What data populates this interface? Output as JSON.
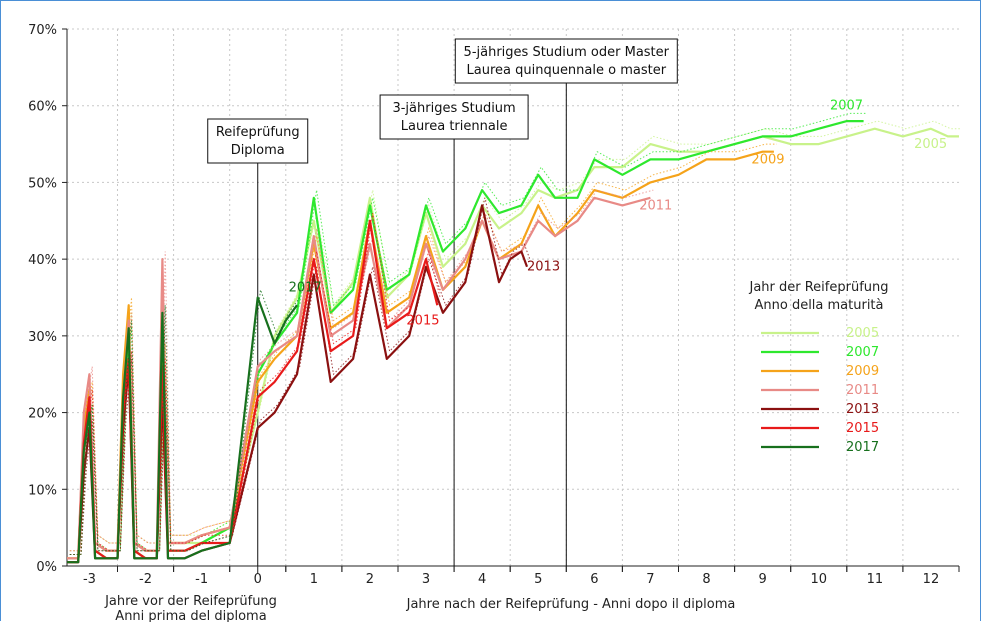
{
  "chart_data": {
    "type": "line",
    "y_tick_labels": [
      "0%",
      "10%",
      "20%",
      "30%",
      "40%",
      "50%",
      "60%",
      "70%"
    ],
    "x_tick_labels": [
      "-3",
      "-2",
      "-1",
      "0",
      "1",
      "2",
      "3",
      "4",
      "5",
      "6",
      "7",
      "8",
      "9",
      "10",
      "11",
      "12"
    ],
    "ylim": [
      0,
      70
    ],
    "xlim": [
      -3.4,
      12.5
    ],
    "grid": true,
    "xlabel_before": [
      "Jahre vor der Reifeprüfung",
      "Anni prima del diploma"
    ],
    "xlabel_after": "Jahre nach der Reifeprüfung - Anni dopo il diploma",
    "legend": {
      "title": [
        "Jahr der Reifeprüfung",
        "Anno della maturità"
      ],
      "placement": "right"
    },
    "annotations": [
      {
        "x": 0,
        "text": [
          "Reifeprüfung",
          "Diploma"
        ]
      },
      {
        "x": 3.5,
        "text": [
          "3-jähriges Studium",
          "Laurea triennale"
        ]
      },
      {
        "x": 5.5,
        "text": [
          "5-jähriges Studium oder Master",
          "Laurea quinquennale o master"
        ]
      }
    ],
    "series": [
      {
        "name": "2005",
        "color": "#c8f28a",
        "points": [
          [
            -3.4,
            1
          ],
          [
            -3.2,
            1
          ],
          [
            -3.1,
            18
          ],
          [
            -3.0,
            22
          ],
          [
            -2.9,
            3
          ],
          [
            -2.7,
            2
          ],
          [
            -2.5,
            2
          ],
          [
            -2.4,
            20
          ],
          [
            -2.3,
            32
          ],
          [
            -2.2,
            3
          ],
          [
            -2.0,
            2
          ],
          [
            -1.8,
            2
          ],
          [
            -1.7,
            28
          ],
          [
            -1.6,
            3
          ],
          [
            -1.3,
            3
          ],
          [
            -1.0,
            3
          ],
          [
            -0.5,
            5
          ],
          [
            0.0,
            20
          ],
          [
            0.3,
            30
          ],
          [
            0.7,
            35
          ],
          [
            1.0,
            45
          ],
          [
            1.3,
            33
          ],
          [
            1.7,
            37
          ],
          [
            2.0,
            48
          ],
          [
            2.3,
            35
          ],
          [
            2.7,
            38
          ],
          [
            3.0,
            46
          ],
          [
            3.3,
            39
          ],
          [
            3.7,
            42
          ],
          [
            4.0,
            47
          ],
          [
            4.3,
            44
          ],
          [
            4.7,
            46
          ],
          [
            5.0,
            49
          ],
          [
            5.3,
            48
          ],
          [
            5.7,
            49
          ],
          [
            6.0,
            52
          ],
          [
            6.5,
            52
          ],
          [
            7.0,
            55
          ],
          [
            7.5,
            54
          ],
          [
            8.0,
            54
          ],
          [
            8.5,
            55
          ],
          [
            9.0,
            56
          ],
          [
            9.5,
            55
          ],
          [
            10.0,
            55
          ],
          [
            10.5,
            56
          ],
          [
            11.0,
            57
          ],
          [
            11.5,
            56
          ],
          [
            12.0,
            57
          ],
          [
            12.3,
            56
          ],
          [
            12.5,
            56
          ]
        ],
        "label": {
          "text": "2005",
          "x": 11.7,
          "y": 54.5
        }
      },
      {
        "name": "2007",
        "color": "#2ee82e",
        "points": [
          [
            -3.4,
            0.5
          ],
          [
            -3.2,
            0.5
          ],
          [
            -3.1,
            15
          ],
          [
            -3.0,
            20
          ],
          [
            -2.9,
            2
          ],
          [
            -2.7,
            1
          ],
          [
            -2.5,
            1
          ],
          [
            -2.4,
            20
          ],
          [
            -2.3,
            30
          ],
          [
            -2.2,
            2
          ],
          [
            -2.0,
            1
          ],
          [
            -1.8,
            1
          ],
          [
            -1.7,
            25
          ],
          [
            -1.6,
            2
          ],
          [
            -1.3,
            2
          ],
          [
            -1.0,
            3
          ],
          [
            -0.5,
            5
          ],
          [
            0.0,
            25
          ],
          [
            0.3,
            29
          ],
          [
            0.7,
            33
          ],
          [
            1.0,
            48
          ],
          [
            1.3,
            33
          ],
          [
            1.7,
            36
          ],
          [
            2.0,
            47
          ],
          [
            2.3,
            36
          ],
          [
            2.7,
            38
          ],
          [
            3.0,
            47
          ],
          [
            3.3,
            41
          ],
          [
            3.7,
            44
          ],
          [
            4.0,
            49
          ],
          [
            4.3,
            46
          ],
          [
            4.7,
            47
          ],
          [
            5.0,
            51
          ],
          [
            5.3,
            48
          ],
          [
            5.7,
            48
          ],
          [
            6.0,
            53
          ],
          [
            6.5,
            51
          ],
          [
            7.0,
            53
          ],
          [
            7.5,
            53
          ],
          [
            8.0,
            54
          ],
          [
            8.5,
            55
          ],
          [
            9.0,
            56
          ],
          [
            9.5,
            56
          ],
          [
            10.0,
            57
          ],
          [
            10.5,
            58
          ],
          [
            10.8,
            58
          ]
        ],
        "label": {
          "text": "2007",
          "x": 10.2,
          "y": 59.5
        }
      },
      {
        "name": "2009",
        "color": "#f5a31a",
        "points": [
          [
            -3.4,
            1
          ],
          [
            -3.2,
            1
          ],
          [
            -3.1,
            18
          ],
          [
            -3.0,
            23
          ],
          [
            -2.9,
            3
          ],
          [
            -2.7,
            2
          ],
          [
            -2.5,
            2
          ],
          [
            -2.4,
            25
          ],
          [
            -2.3,
            34
          ],
          [
            -2.2,
            3
          ],
          [
            -2.0,
            2
          ],
          [
            -1.8,
            2
          ],
          [
            -1.7,
            28
          ],
          [
            -1.6,
            3
          ],
          [
            -1.3,
            3
          ],
          [
            -1.0,
            4
          ],
          [
            -0.5,
            5
          ],
          [
            0.0,
            24
          ],
          [
            0.3,
            27
          ],
          [
            0.7,
            30
          ],
          [
            1.0,
            42
          ],
          [
            1.3,
            31
          ],
          [
            1.7,
            33
          ],
          [
            2.0,
            45
          ],
          [
            2.3,
            33
          ],
          [
            2.7,
            35
          ],
          [
            3.0,
            43
          ],
          [
            3.3,
            36
          ],
          [
            3.7,
            39
          ],
          [
            4.0,
            45
          ],
          [
            4.3,
            40
          ],
          [
            4.7,
            42
          ],
          [
            5.0,
            47
          ],
          [
            5.3,
            43
          ],
          [
            5.7,
            46
          ],
          [
            6.0,
            49
          ],
          [
            6.5,
            48
          ],
          [
            7.0,
            50
          ],
          [
            7.5,
            51
          ],
          [
            8.0,
            53
          ],
          [
            8.5,
            53
          ],
          [
            9.0,
            54
          ],
          [
            9.2,
            54
          ]
        ],
        "label": {
          "text": "2009",
          "x": 8.8,
          "y": 52.5
        }
      },
      {
        "name": "2011",
        "color": "#e88a86",
        "points": [
          [
            -3.4,
            1
          ],
          [
            -3.2,
            1
          ],
          [
            -3.1,
            20
          ],
          [
            -3.0,
            25
          ],
          [
            -2.9,
            3
          ],
          [
            -2.7,
            2
          ],
          [
            -2.5,
            2
          ],
          [
            -2.4,
            22
          ],
          [
            -2.3,
            32
          ],
          [
            -2.2,
            3
          ],
          [
            -2.0,
            2
          ],
          [
            -1.8,
            2
          ],
          [
            -1.7,
            40
          ],
          [
            -1.6,
            3
          ],
          [
            -1.3,
            3
          ],
          [
            -1.0,
            4
          ],
          [
            -0.5,
            5
          ],
          [
            0.0,
            26
          ],
          [
            0.3,
            28
          ],
          [
            0.7,
            30
          ],
          [
            1.0,
            43
          ],
          [
            1.3,
            30
          ],
          [
            1.7,
            32
          ],
          [
            2.0,
            42
          ],
          [
            2.3,
            31
          ],
          [
            2.7,
            34
          ],
          [
            3.0,
            42
          ],
          [
            3.3,
            36
          ],
          [
            3.7,
            40
          ],
          [
            4.0,
            45
          ],
          [
            4.3,
            40
          ],
          [
            4.7,
            41
          ],
          [
            5.0,
            45
          ],
          [
            5.3,
            43
          ],
          [
            5.7,
            45
          ],
          [
            6.0,
            48
          ],
          [
            6.5,
            47
          ],
          [
            7.0,
            48
          ]
        ],
        "label": {
          "text": "2011",
          "x": 6.8,
          "y": 46.5
        }
      },
      {
        "name": "2013",
        "color": "#8b1010",
        "points": [
          [
            -3.4,
            0.5
          ],
          [
            -3.2,
            0.5
          ],
          [
            -3.1,
            12
          ],
          [
            -3.0,
            18
          ],
          [
            -2.9,
            1
          ],
          [
            -2.7,
            1
          ],
          [
            -2.5,
            1
          ],
          [
            -2.4,
            18
          ],
          [
            -2.3,
            26
          ],
          [
            -2.2,
            1
          ],
          [
            -2.0,
            1
          ],
          [
            -1.8,
            1
          ],
          [
            -1.7,
            22
          ],
          [
            -1.6,
            1
          ],
          [
            -1.3,
            1
          ],
          [
            -1.0,
            2
          ],
          [
            -0.5,
            3
          ],
          [
            0.0,
            18
          ],
          [
            0.3,
            20
          ],
          [
            0.7,
            25
          ],
          [
            1.0,
            38
          ],
          [
            1.3,
            24
          ],
          [
            1.7,
            27
          ],
          [
            2.0,
            38
          ],
          [
            2.3,
            27
          ],
          [
            2.7,
            30
          ],
          [
            3.0,
            39
          ],
          [
            3.3,
            33
          ],
          [
            3.7,
            37
          ],
          [
            4.0,
            47
          ],
          [
            4.3,
            37
          ],
          [
            4.5,
            40
          ],
          [
            4.7,
            41
          ],
          [
            4.8,
            39
          ]
        ],
        "label": {
          "text": "2013",
          "x": 4.8,
          "y": 38.5
        }
      },
      {
        "name": "2015",
        "color": "#e81a1a",
        "points": [
          [
            -3.4,
            0.5
          ],
          [
            -3.2,
            0.5
          ],
          [
            -3.1,
            16
          ],
          [
            -3.0,
            22
          ],
          [
            -2.9,
            2
          ],
          [
            -2.7,
            1
          ],
          [
            -2.5,
            1
          ],
          [
            -2.4,
            20
          ],
          [
            -2.3,
            27
          ],
          [
            -2.2,
            2
          ],
          [
            -2.0,
            1
          ],
          [
            -1.8,
            1
          ],
          [
            -1.7,
            26
          ],
          [
            -1.6,
            2
          ],
          [
            -1.3,
            2
          ],
          [
            -1.0,
            3
          ],
          [
            -0.5,
            3
          ],
          [
            0.0,
            22
          ],
          [
            0.3,
            24
          ],
          [
            0.7,
            28
          ],
          [
            1.0,
            40
          ],
          [
            1.3,
            28
          ],
          [
            1.7,
            30
          ],
          [
            2.0,
            45
          ],
          [
            2.3,
            31
          ],
          [
            2.7,
            33
          ],
          [
            3.0,
            40
          ],
          [
            3.2,
            34
          ]
        ],
        "label": {
          "text": "2015",
          "x": 2.65,
          "y": 31.5
        }
      },
      {
        "name": "2017",
        "color": "#17701d",
        "points": [
          [
            -3.4,
            0.5
          ],
          [
            -3.2,
            0.5
          ],
          [
            -3.1,
            15
          ],
          [
            -3.0,
            20
          ],
          [
            -2.9,
            1
          ],
          [
            -2.7,
            1
          ],
          [
            -2.5,
            1
          ],
          [
            -2.4,
            22
          ],
          [
            -2.3,
            31
          ],
          [
            -2.2,
            1
          ],
          [
            -2.0,
            1
          ],
          [
            -1.8,
            1
          ],
          [
            -1.7,
            33
          ],
          [
            -1.6,
            1
          ],
          [
            -1.3,
            1
          ],
          [
            -1.0,
            2
          ],
          [
            -0.5,
            3
          ],
          [
            0.0,
            35
          ],
          [
            0.3,
            29
          ],
          [
            0.5,
            32
          ],
          [
            0.7,
            34
          ]
        ],
        "label": {
          "text": "2017",
          "x": 0.55,
          "y": 35.8
        }
      }
    ]
  }
}
